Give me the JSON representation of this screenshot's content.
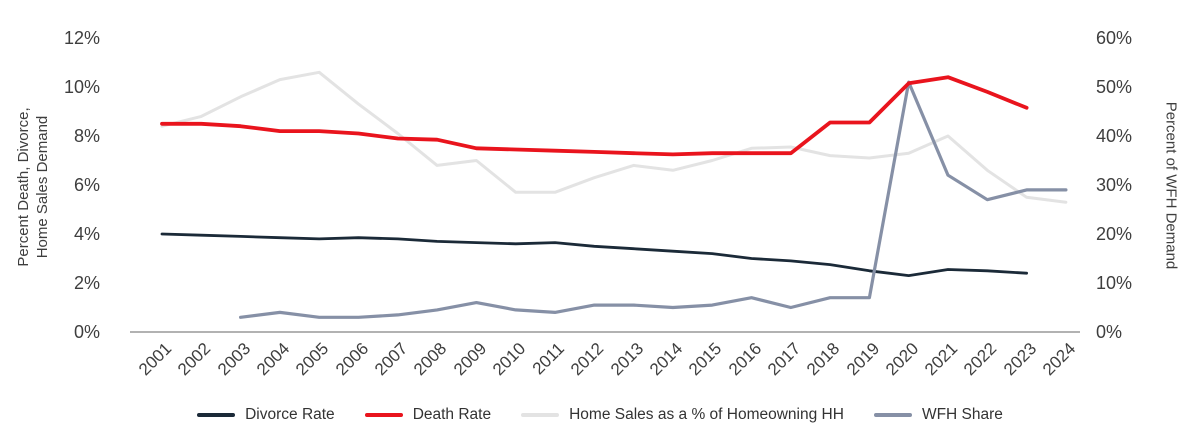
{
  "chart_data": {
    "type": "line",
    "categories": [
      "2001",
      "2002",
      "2003",
      "2004",
      "2005",
      "2006",
      "2007",
      "2008",
      "2009",
      "2010",
      "2011",
      "2012",
      "2013",
      "2014",
      "2015",
      "2016",
      "2017",
      "2018",
      "2019",
      "2020",
      "2021",
      "2022",
      "2023",
      "2024"
    ],
    "left_axis": {
      "title_line1": "Percent Death, Divorce,",
      "title_line2": "Home Sales Demand",
      "ticks": [
        0,
        2,
        4,
        6,
        8,
        10,
        12
      ],
      "suffix": "%",
      "range": [
        0,
        12
      ]
    },
    "right_axis": {
      "title": "Percent of WFH Demand",
      "ticks": [
        0,
        10,
        20,
        30,
        40,
        50,
        60
      ],
      "suffix": "%",
      "range": [
        0,
        60
      ]
    },
    "grid": false,
    "legend_position": "bottom",
    "series": [
      {
        "id": "divorce-rate",
        "name": "Divorce Rate",
        "color": "#1b2a38",
        "axis": "left",
        "start_year": 2001,
        "values": [
          4.0,
          3.95,
          3.9,
          3.85,
          3.8,
          3.85,
          3.8,
          3.7,
          3.65,
          3.6,
          3.65,
          3.5,
          3.4,
          3.3,
          3.2,
          3.0,
          2.9,
          2.75,
          2.5,
          2.3,
          2.55,
          2.5,
          2.4
        ]
      },
      {
        "id": "death-rate",
        "name": "Death Rate",
        "color": "#e9141d",
        "axis": "left",
        "start_year": 2001,
        "values": [
          8.5,
          8.5,
          8.4,
          8.2,
          8.2,
          8.1,
          7.9,
          7.85,
          7.5,
          7.45,
          7.4,
          7.35,
          7.3,
          7.25,
          7.3,
          7.3,
          7.3,
          8.55,
          8.55,
          10.15,
          10.4,
          9.8,
          9.15
        ]
      },
      {
        "id": "home-sales",
        "name": "Home Sales as a % of Homeowning HH",
        "color": "#e3e3e3",
        "axis": "left",
        "start_year": 2001,
        "values": [
          8.4,
          8.8,
          9.6,
          10.3,
          10.6,
          9.3,
          8.1,
          6.8,
          7.0,
          5.7,
          5.7,
          6.3,
          6.8,
          6.6,
          7.0,
          7.5,
          7.55,
          7.2,
          7.1,
          7.3,
          8.0,
          6.6,
          5.5,
          5.3
        ]
      },
      {
        "id": "wfh-share",
        "name": "WFH Share",
        "color": "#8690a6",
        "axis": "right",
        "start_year": 2003,
        "values": [
          3,
          4,
          3,
          3,
          3.5,
          4.5,
          6,
          4.5,
          4,
          5.5,
          5.5,
          5,
          5.5,
          7,
          5,
          7,
          7,
          51,
          32,
          27,
          29,
          29
        ]
      }
    ]
  },
  "colors": {
    "axis_line": "#999999",
    "tick_text": "#3e3e3e",
    "background": "#ffffff"
  }
}
